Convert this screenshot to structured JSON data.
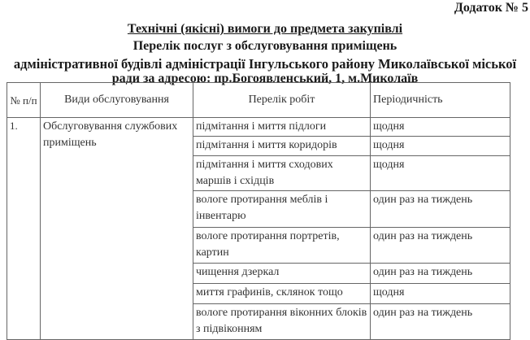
{
  "annex": "Додаток № 5",
  "title": "Технічні (якісні) вимоги до предмета закупівлі",
  "subtitle_lines": [
    "Перелік послуг з обслуговування приміщень",
    "адміністративної будівлі адміністрації Інгульського району Миколаївської міської",
    "ради за адресою: пр.Богоявленський, 1, м.Миколаїв"
  ],
  "table": {
    "headers": [
      "№ п/п",
      "Види обслуговування",
      "Перелік робіт",
      "Періодичність"
    ],
    "row_number": "1.",
    "service_type": "Обслуговування службових приміщень",
    "works": [
      {
        "work": "підмітання і миття підлоги",
        "period": "щодня"
      },
      {
        "work": "підмітання і миття коридорів",
        "period": "щодня"
      },
      {
        "work": "підмітання і миття сходових маршів і східців",
        "period": "щодня"
      },
      {
        "work": "вологе протирання меблів і інвентарю",
        "period": "один раз на тиждень"
      },
      {
        "work": "вологе протирання портретів, картин",
        "period": "один раз на тиждень"
      },
      {
        "work": "чищення дзеркал",
        "period": "один раз на тиждень"
      },
      {
        "work": "миття графинів, склянок тощо",
        "period": "щодня"
      },
      {
        "work": "вологе протирання віконних блоків з підвіконням",
        "period": "один раз на тиждень"
      }
    ]
  }
}
